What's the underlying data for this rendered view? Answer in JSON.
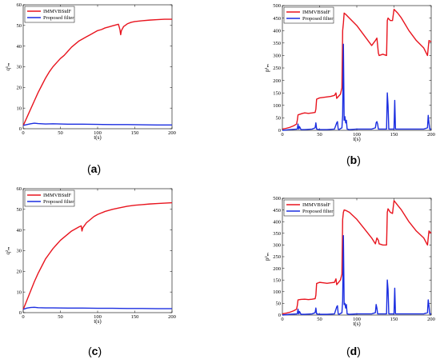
{
  "captions": [
    {
      "open": "(",
      "letter": "a",
      "close": ")"
    },
    {
      "open": "(",
      "letter": "b",
      "close": ")"
    },
    {
      "open": "(",
      "letter": "c",
      "close": ")"
    },
    {
      "open": "(",
      "letter": "d",
      "close": ")"
    }
  ],
  "colors": {
    "series1": "#e8141e",
    "series2": "#1a2de0"
  },
  "chart_data": [
    {
      "type": "line",
      "xlabel": "t(s)",
      "ylabel": "q¹ₘ",
      "xlim": [
        0,
        200
      ],
      "ylim": [
        0,
        60
      ],
      "xticks": [
        "0",
        "50",
        "100",
        "150",
        "200"
      ],
      "yticks": [
        "0",
        "10",
        "20",
        "30",
        "40",
        "50",
        "60"
      ],
      "legend_position": "top-left",
      "series": [
        {
          "name": "IMMVBStdF",
          "color": "#e8141e",
          "x": [
            0,
            5,
            10,
            15,
            20,
            25,
            30,
            35,
            40,
            45,
            50,
            55,
            60,
            65,
            70,
            75,
            80,
            85,
            90,
            95,
            100,
            105,
            110,
            115,
            120,
            125,
            128,
            130,
            131,
            132,
            135,
            140,
            145,
            150,
            160,
            170,
            180,
            190,
            200
          ],
          "y": [
            1.5,
            5.5,
            9.5,
            13.5,
            17.5,
            21,
            24.5,
            27.5,
            30,
            32,
            34,
            35.5,
            37.5,
            39.5,
            41,
            42.5,
            43.5,
            44.5,
            45.5,
            46.5,
            47.5,
            48,
            48.8,
            49.3,
            49.8,
            50.3,
            50.6,
            48,
            45.5,
            47.5,
            49.5,
            50.8,
            51.5,
            51.9,
            52.3,
            52.6,
            52.8,
            53,
            53
          ]
        },
        {
          "name": "Proposed filter",
          "color": "#1a2de0",
          "x": [
            0,
            5,
            10,
            15,
            20,
            30,
            40,
            60,
            80,
            100,
            120,
            140,
            160,
            180,
            200
          ],
          "y": [
            1.6,
            2,
            2.4,
            2.7,
            2.5,
            2.3,
            2.4,
            2.2,
            2.2,
            2.1,
            2,
            2,
            1.9,
            1.8,
            1.8
          ]
        }
      ]
    },
    {
      "type": "line",
      "xlabel": "t(s)",
      "ylabel": "p¹ₘ",
      "xlim": [
        0,
        200
      ],
      "ylim": [
        0,
        500
      ],
      "xticks": [
        "0",
        "50",
        "100",
        "150",
        "200"
      ],
      "yticks": [
        "0",
        "50",
        "100",
        "150",
        "200",
        "250",
        "300",
        "350",
        "400",
        "450",
        "500"
      ],
      "legend_position": "top-left",
      "series": [
        {
          "name": "IMMVBStdF",
          "color": "#e8141e",
          "x": [
            0,
            5,
            10,
            15,
            19,
            20,
            21,
            25,
            27,
            30,
            35,
            40,
            44,
            45,
            46,
            50,
            55,
            60,
            65,
            70,
            72,
            73,
            78,
            80,
            81,
            82,
            83,
            85,
            90,
            100,
            110,
            120,
            125,
            127,
            129,
            130,
            135,
            140,
            141,
            142,
            145,
            148,
            150,
            155,
            160,
            170,
            180,
            190,
            195,
            197,
            200
          ],
          "y": [
            5,
            8,
            12,
            18,
            25,
            40,
            62,
            66,
            68,
            70,
            68,
            70,
            72,
            85,
            125,
            130,
            132,
            134,
            136,
            140,
            150,
            128,
            145,
            170,
            400,
            430,
            470,
            465,
            450,
            420,
            380,
            340,
            360,
            370,
            310,
            300,
            305,
            300,
            440,
            450,
            440,
            440,
            485,
            470,
            450,
            400,
            360,
            330,
            300,
            360,
            355
          ]
        },
        {
          "name": "Proposed filter",
          "color": "#1a2de0",
          "x": [
            0,
            10,
            20,
            21,
            22,
            23,
            25,
            30,
            40,
            44,
            45,
            46,
            50,
            60,
            70,
            73,
            74,
            75,
            76,
            80,
            81,
            82,
            83,
            84,
            85,
            86,
            87,
            90,
            100,
            110,
            120,
            125,
            126,
            127,
            128,
            129,
            130,
            140,
            141,
            142,
            143,
            150,
            151,
            152,
            153,
            160,
            170,
            180,
            190,
            195,
            196,
            197,
            198,
            200
          ],
          "y": [
            0,
            3,
            5,
            25,
            5,
            15,
            3,
            3,
            5,
            10,
            30,
            5,
            3,
            3,
            5,
            30,
            35,
            5,
            3,
            10,
            60,
            345,
            40,
            55,
            30,
            40,
            5,
            3,
            5,
            5,
            5,
            10,
            30,
            35,
            25,
            5,
            5,
            5,
            150,
            100,
            5,
            5,
            120,
            5,
            5,
            5,
            5,
            5,
            5,
            10,
            60,
            30,
            5,
            5
          ]
        }
      ]
    },
    {
      "type": "line",
      "xlabel": "t(s)",
      "ylabel": "q²ₘ",
      "xlim": [
        0,
        200
      ],
      "ylim": [
        0,
        60
      ],
      "xticks": [
        "0",
        "50",
        "100",
        "150",
        "200"
      ],
      "yticks": [
        "0",
        "10",
        "20",
        "30",
        "40",
        "50",
        "60"
      ],
      "legend_position": "top-left",
      "series": [
        {
          "name": "IMMVBStdF",
          "color": "#e8141e",
          "x": [
            0,
            5,
            10,
            15,
            20,
            25,
            30,
            35,
            40,
            45,
            50,
            55,
            60,
            65,
            70,
            75,
            78,
            79,
            80,
            85,
            90,
            95,
            100,
            110,
            120,
            130,
            140,
            150,
            160,
            170,
            180,
            190,
            200
          ],
          "y": [
            1.5,
            6,
            10.5,
            15,
            19,
            22.5,
            26,
            28.5,
            31,
            33,
            35,
            36.5,
            38,
            39.5,
            40.5,
            41.5,
            42,
            39.5,
            41,
            43.5,
            45,
            46.5,
            47.5,
            49,
            50,
            50.8,
            51.5,
            52,
            52.3,
            52.6,
            52.8,
            53,
            53.2
          ]
        },
        {
          "name": "Proposed filter",
          "color": "#1a2de0",
          "x": [
            0,
            5,
            10,
            15,
            20,
            30,
            40,
            60,
            80,
            100,
            120,
            140,
            160,
            180,
            200
          ],
          "y": [
            1.6,
            2.2,
            2.5,
            2.6,
            2.4,
            2.3,
            2.3,
            2.2,
            2.2,
            2.1,
            2.1,
            2,
            2,
            1.9,
            1.9
          ]
        }
      ]
    },
    {
      "type": "line",
      "xlabel": "t(s)",
      "ylabel": "p²ₘ",
      "xlim": [
        0,
        200
      ],
      "ylim": [
        0,
        500
      ],
      "xticks": [
        "0",
        "50",
        "100",
        "150",
        "200"
      ],
      "yticks": [
        "0",
        "50",
        "100",
        "150",
        "200",
        "250",
        "300",
        "350",
        "400",
        "450",
        "500"
      ],
      "legend_position": "top-left",
      "series": [
        {
          "name": "IMMVBStdF",
          "color": "#e8141e",
          "x": [
            0,
            5,
            10,
            15,
            19,
            20,
            21,
            25,
            30,
            35,
            40,
            44,
            45,
            46,
            50,
            55,
            60,
            65,
            70,
            72,
            73,
            78,
            80,
            81,
            82,
            83,
            85,
            90,
            100,
            110,
            120,
            125,
            127,
            129,
            130,
            135,
            140,
            141,
            142,
            145,
            148,
            150,
            155,
            160,
            170,
            180,
            190,
            195,
            197,
            200
          ],
          "y": [
            5,
            8,
            12,
            18,
            25,
            40,
            65,
            67,
            68,
            66,
            68,
            70,
            85,
            135,
            140,
            138,
            136,
            138,
            140,
            155,
            130,
            150,
            175,
            410,
            440,
            450,
            448,
            440,
            410,
            370,
            330,
            305,
            330,
            320,
            305,
            300,
            300,
            440,
            455,
            440,
            435,
            490,
            470,
            450,
            400,
            360,
            330,
            300,
            360,
            350
          ]
        },
        {
          "name": "Proposed filter",
          "color": "#1a2de0",
          "x": [
            0,
            10,
            20,
            21,
            22,
            23,
            25,
            30,
            40,
            44,
            45,
            46,
            50,
            60,
            70,
            73,
            74,
            75,
            76,
            80,
            81,
            82,
            83,
            84,
            85,
            86,
            87,
            90,
            100,
            110,
            120,
            125,
            126,
            127,
            128,
            129,
            130,
            140,
            141,
            142,
            143,
            150,
            151,
            152,
            153,
            160,
            170,
            180,
            190,
            195,
            196,
            197,
            198,
            200
          ],
          "y": [
            0,
            3,
            5,
            25,
            5,
            15,
            3,
            3,
            5,
            10,
            30,
            5,
            3,
            3,
            5,
            35,
            40,
            5,
            3,
            10,
            60,
            340,
            45,
            50,
            30,
            45,
            5,
            3,
            5,
            5,
            5,
            10,
            45,
            30,
            5,
            5,
            5,
            5,
            150,
            110,
            5,
            5,
            115,
            5,
            5,
            5,
            5,
            5,
            5,
            10,
            65,
            40,
            5,
            5
          ]
        }
      ]
    }
  ]
}
